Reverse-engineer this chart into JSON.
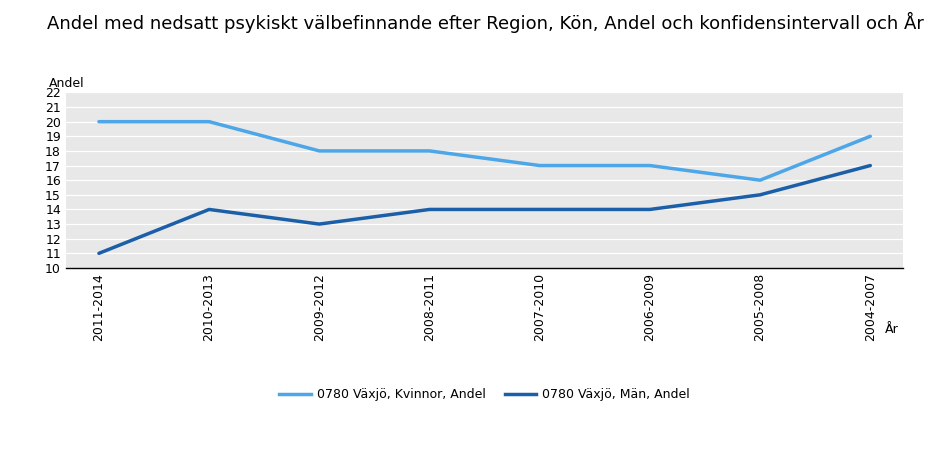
{
  "title": "Andel med nedsatt psykiskt välbefinnande efter Region, Kön, Andel och konfidensintervall och År",
  "ylabel": "Andel",
  "xlabel": "År",
  "x_labels": [
    "2011-2014",
    "2010-2013",
    "2009-2012",
    "2008-2011",
    "2007-2010",
    "2006-2009",
    "2005-2008",
    "2004-2007"
  ],
  "kvinnor_values": [
    20.0,
    20.0,
    18.0,
    18.0,
    17.0,
    17.0,
    16.0,
    19.0
  ],
  "man_values": [
    11.0,
    14.0,
    13.0,
    14.0,
    14.0,
    14.0,
    15.0,
    17.0
  ],
  "line_color_kvinnor": "#4DA6E8",
  "line_color_man": "#1A5FA8",
  "ylim_min": 10,
  "ylim_max": 22,
  "yticks": [
    10,
    11,
    12,
    13,
    14,
    15,
    16,
    17,
    18,
    19,
    20,
    21,
    22
  ],
  "legend_kvinnor": "0780 Växjö, Kvinnor, Andel",
  "legend_man": "0780 Växjö, Män, Andel",
  "bg_color": "#E8E8E8",
  "grid_color": "#FFFFFF",
  "title_fontsize": 13,
  "axis_label_fontsize": 9,
  "tick_fontsize": 9,
  "legend_fontsize": 9
}
